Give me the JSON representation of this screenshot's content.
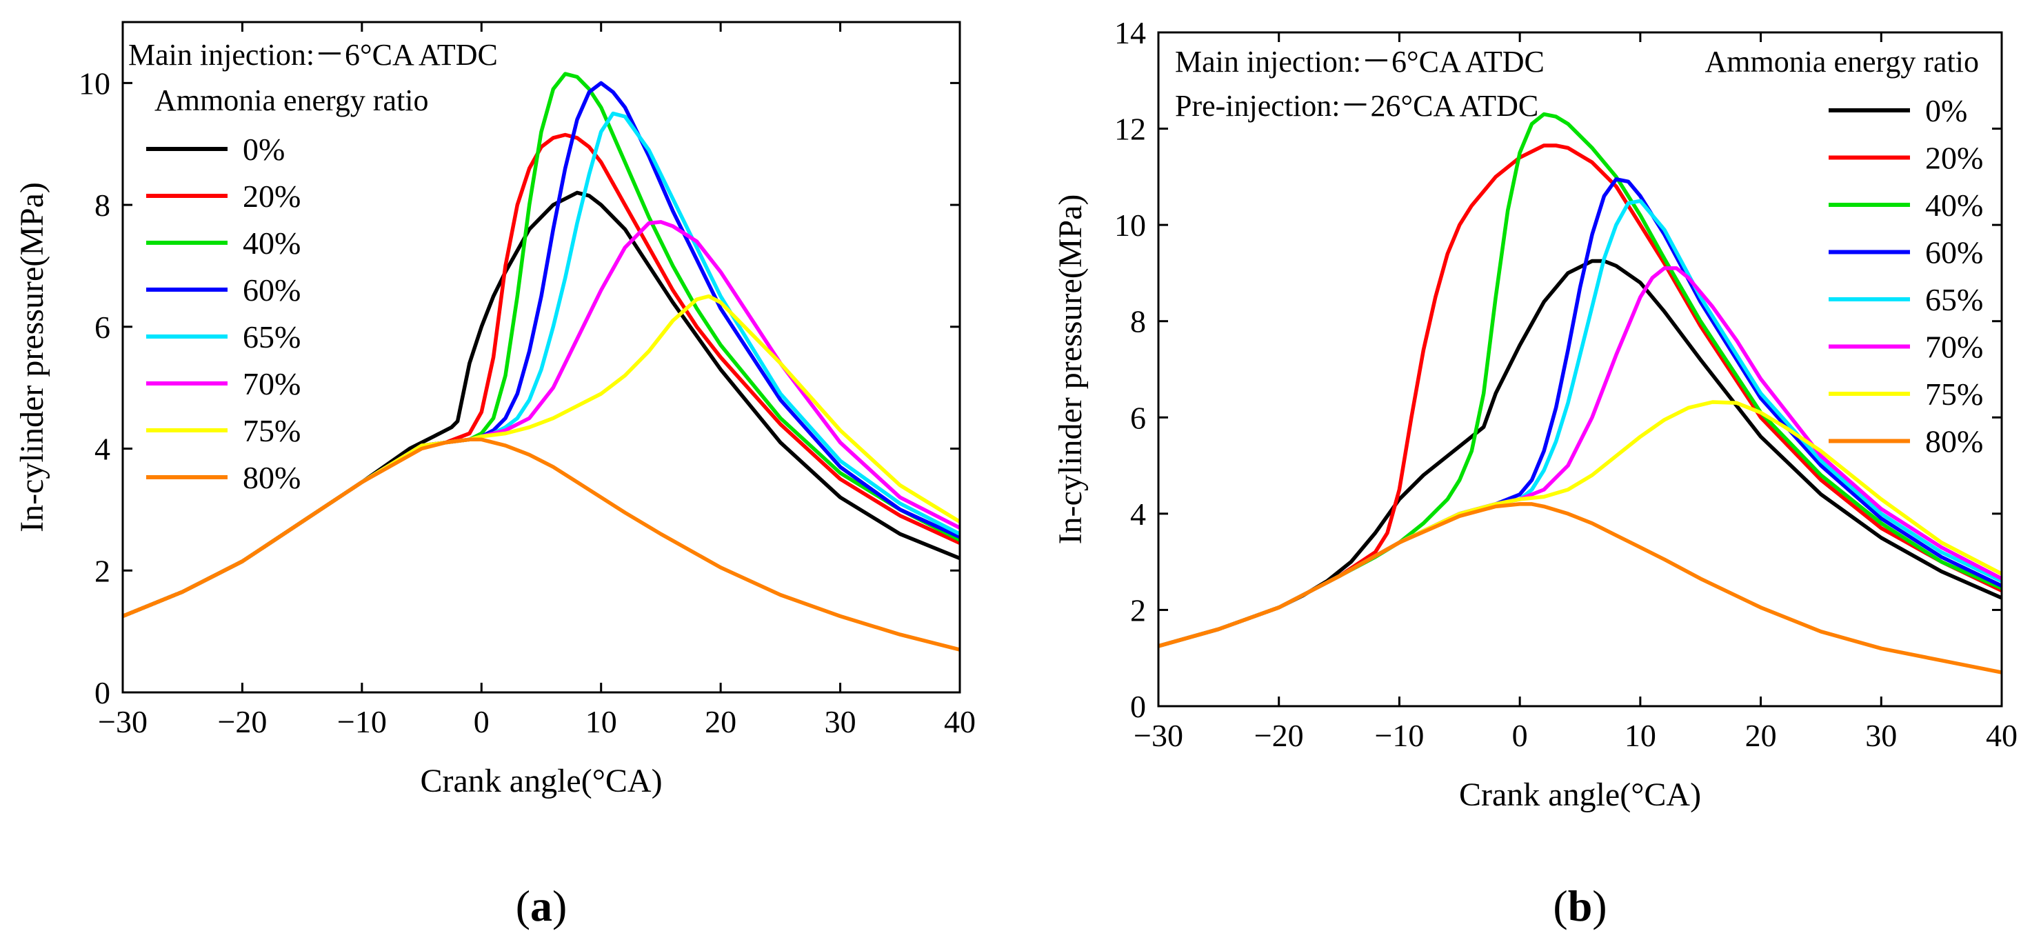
{
  "chart_data": [
    {
      "type": "line",
      "panel_label": "(a)",
      "xlabel": "Crank angle(°CA)",
      "ylabel": "In-cylinder pressure(MPa)",
      "xlim": [
        -30,
        40
      ],
      "ylim": [
        0,
        11
      ],
      "xticks": [
        -30,
        -20,
        -10,
        0,
        10,
        20,
        30,
        40
      ],
      "yticks": [
        0,
        2,
        4,
        6,
        8,
        10
      ],
      "xtick_labels": [
        "−30",
        "−20",
        "−10",
        "0",
        "10",
        "20",
        "30",
        "40"
      ],
      "ytick_labels": [
        "0",
        "2",
        "4",
        "6",
        "8",
        "10"
      ],
      "annotations": [
        "Main injection:－6°CA ATDC"
      ],
      "legend_title": "Ammonia energy ratio",
      "legend_position": "top-left",
      "series": [
        {
          "name": "0%",
          "color": "#000000",
          "x": [
            -30,
            -25,
            -20,
            -15,
            -10,
            -6,
            -4,
            -2.5,
            -2,
            -1,
            0,
            1,
            2,
            4,
            6,
            8,
            9,
            10,
            12,
            14,
            16,
            20,
            25,
            30,
            35,
            40
          ],
          "y": [
            1.25,
            1.65,
            2.15,
            2.8,
            3.45,
            4.0,
            4.2,
            4.35,
            4.45,
            5.4,
            6.0,
            6.5,
            6.9,
            7.6,
            8.0,
            8.2,
            8.15,
            8.0,
            7.6,
            7.0,
            6.4,
            5.3,
            4.1,
            3.2,
            2.6,
            2.2
          ]
        },
        {
          "name": "20%",
          "color": "#ff0000",
          "x": [
            -30,
            -25,
            -20,
            -15,
            -10,
            -5,
            -3,
            -1,
            0,
            1,
            2,
            3,
            4,
            5,
            6,
            7,
            8,
            9,
            10,
            12,
            14,
            16,
            18,
            20,
            25,
            30,
            35,
            40
          ],
          "y": [
            1.25,
            1.65,
            2.15,
            2.8,
            3.45,
            4.05,
            4.1,
            4.25,
            4.6,
            5.5,
            7.0,
            8.0,
            8.6,
            8.95,
            9.1,
            9.15,
            9.1,
            8.95,
            8.7,
            8.0,
            7.3,
            6.6,
            6.0,
            5.5,
            4.4,
            3.5,
            2.9,
            2.45
          ]
        },
        {
          "name": "40%",
          "color": "#00e000",
          "x": [
            -30,
            -25,
            -20,
            -15,
            -10,
            -5,
            -3,
            -1,
            0,
            1,
            2,
            3,
            4,
            5,
            6,
            7,
            8,
            9,
            10,
            12,
            14,
            16,
            18,
            20,
            25,
            30,
            35,
            40
          ],
          "y": [
            1.25,
            1.65,
            2.15,
            2.8,
            3.45,
            4.05,
            4.1,
            4.15,
            4.25,
            4.5,
            5.2,
            6.5,
            8.0,
            9.2,
            9.9,
            10.15,
            10.1,
            9.9,
            9.6,
            8.7,
            7.8,
            7.0,
            6.3,
            5.7,
            4.5,
            3.6,
            3.0,
            2.5
          ]
        },
        {
          "name": "60%",
          "color": "#0000ff",
          "x": [
            -30,
            -25,
            -20,
            -15,
            -10,
            -5,
            -3,
            -1,
            0,
            1,
            2,
            3,
            4,
            5,
            6,
            7,
            8,
            9,
            10,
            11,
            12,
            14,
            16,
            18,
            20,
            25,
            30,
            35,
            40
          ],
          "y": [
            1.25,
            1.65,
            2.15,
            2.8,
            3.45,
            4.05,
            4.1,
            4.15,
            4.2,
            4.3,
            4.5,
            4.9,
            5.6,
            6.5,
            7.6,
            8.6,
            9.4,
            9.85,
            10.0,
            9.85,
            9.6,
            8.8,
            7.9,
            7.1,
            6.3,
            4.8,
            3.7,
            3.0,
            2.55
          ]
        },
        {
          "name": "65%",
          "color": "#00e5ff",
          "x": [
            -30,
            -25,
            -20,
            -15,
            -10,
            -5,
            -3,
            -1,
            0,
            1,
            2,
            3,
            4,
            5,
            6,
            7,
            8,
            9,
            10,
            11,
            12,
            14,
            16,
            18,
            20,
            25,
            30,
            35,
            40
          ],
          "y": [
            1.25,
            1.65,
            2.15,
            2.8,
            3.45,
            4.05,
            4.1,
            4.15,
            4.2,
            4.25,
            4.35,
            4.5,
            4.8,
            5.3,
            6.0,
            6.8,
            7.7,
            8.5,
            9.2,
            9.5,
            9.45,
            8.9,
            8.1,
            7.3,
            6.5,
            4.9,
            3.8,
            3.1,
            2.6
          ]
        },
        {
          "name": "70%",
          "color": "#ff00ff",
          "x": [
            -30,
            -25,
            -20,
            -15,
            -10,
            -5,
            -3,
            -1,
            0,
            2,
            4,
            6,
            8,
            10,
            12,
            14,
            15,
            16,
            18,
            20,
            22,
            25,
            30,
            35,
            40
          ],
          "y": [
            1.25,
            1.65,
            2.15,
            2.8,
            3.45,
            4.05,
            4.1,
            4.15,
            4.2,
            4.3,
            4.5,
            5.0,
            5.8,
            6.6,
            7.3,
            7.7,
            7.72,
            7.65,
            7.4,
            6.9,
            6.3,
            5.4,
            4.1,
            3.2,
            2.7
          ]
        },
        {
          "name": "75%",
          "color": "#ffff00",
          "x": [
            -30,
            -25,
            -20,
            -15,
            -10,
            -5,
            -3,
            -1,
            0,
            2,
            4,
            6,
            8,
            10,
            12,
            14,
            16,
            18,
            19,
            20,
            22,
            25,
            30,
            35,
            40
          ],
          "y": [
            1.25,
            1.65,
            2.15,
            2.8,
            3.45,
            4.05,
            4.1,
            4.15,
            4.2,
            4.25,
            4.35,
            4.5,
            4.7,
            4.9,
            5.2,
            5.6,
            6.1,
            6.45,
            6.5,
            6.4,
            6.0,
            5.4,
            4.3,
            3.4,
            2.8
          ]
        },
        {
          "name": "80%",
          "color": "#ff8000",
          "x": [
            -30,
            -25,
            -20,
            -15,
            -10,
            -5,
            -3,
            -1,
            0,
            2,
            4,
            6,
            8,
            10,
            12,
            15,
            20,
            25,
            30,
            35,
            40
          ],
          "y": [
            1.25,
            1.65,
            2.15,
            2.8,
            3.45,
            4.0,
            4.1,
            4.15,
            4.15,
            4.05,
            3.9,
            3.7,
            3.45,
            3.2,
            2.95,
            2.6,
            2.05,
            1.6,
            1.25,
            0.95,
            0.7
          ]
        }
      ]
    },
    {
      "type": "line",
      "panel_label": "(b)",
      "xlabel": "Crank angle(°CA)",
      "ylabel": "In-cylinder pressure(MPa)",
      "xlim": [
        -30,
        40
      ],
      "ylim": [
        0,
        14
      ],
      "xticks": [
        -30,
        -20,
        -10,
        0,
        10,
        20,
        30,
        40
      ],
      "yticks": [
        0,
        2,
        4,
        6,
        8,
        10,
        12,
        14
      ],
      "xtick_labels": [
        "−30",
        "−20",
        "−10",
        "0",
        "10",
        "20",
        "30",
        "40"
      ],
      "ytick_labels": [
        "0",
        "2",
        "4",
        "6",
        "8",
        "10",
        "12",
        "14"
      ],
      "annotations": [
        "Main injection:－6°CA ATDC",
        "Pre-injection:－26°CA ATDC"
      ],
      "legend_title": "Ammonia energy ratio",
      "legend_position": "top-right",
      "series": [
        {
          "name": "0%",
          "color": "#000000",
          "x": [
            -30,
            -25,
            -20,
            -18,
            -16,
            -14,
            -12,
            -10,
            -8,
            -6,
            -4,
            -3,
            -2,
            0,
            2,
            4,
            6,
            7,
            8,
            10,
            12,
            15,
            20,
            25,
            30,
            35,
            40
          ],
          "y": [
            1.25,
            1.6,
            2.05,
            2.3,
            2.6,
            3.0,
            3.6,
            4.3,
            4.8,
            5.2,
            5.6,
            5.8,
            6.5,
            7.5,
            8.4,
            9.0,
            9.25,
            9.25,
            9.15,
            8.8,
            8.2,
            7.2,
            5.6,
            4.4,
            3.5,
            2.8,
            2.25
          ]
        },
        {
          "name": "20%",
          "color": "#ff0000",
          "x": [
            -30,
            -25,
            -20,
            -15,
            -12,
            -11,
            -10,
            -9,
            -8,
            -7,
            -6,
            -5,
            -4,
            -2,
            0,
            2,
            3,
            4,
            6,
            8,
            10,
            12,
            15,
            20,
            25,
            30,
            35,
            40
          ],
          "y": [
            1.25,
            1.6,
            2.05,
            2.7,
            3.2,
            3.6,
            4.5,
            6.0,
            7.4,
            8.5,
            9.4,
            10.0,
            10.4,
            11.0,
            11.4,
            11.65,
            11.65,
            11.6,
            11.3,
            10.8,
            10.0,
            9.2,
            7.9,
            6.0,
            4.7,
            3.7,
            3.0,
            2.4
          ]
        },
        {
          "name": "40%",
          "color": "#00e000",
          "x": [
            -30,
            -25,
            -20,
            -15,
            -12,
            -10,
            -8,
            -6,
            -5,
            -4,
            -3,
            -2,
            -1,
            0,
            1,
            2,
            3,
            4,
            6,
            8,
            10,
            12,
            15,
            20,
            25,
            30,
            35,
            40
          ],
          "y": [
            1.25,
            1.6,
            2.05,
            2.7,
            3.1,
            3.4,
            3.8,
            4.3,
            4.7,
            5.3,
            6.5,
            8.5,
            10.3,
            11.5,
            12.1,
            12.3,
            12.25,
            12.1,
            11.6,
            11.0,
            10.2,
            9.3,
            8.0,
            6.1,
            4.8,
            3.8,
            3.0,
            2.45
          ]
        },
        {
          "name": "60%",
          "color": "#0000ff",
          "x": [
            -30,
            -25,
            -20,
            -15,
            -10,
            -5,
            -2,
            0,
            1,
            2,
            3,
            4,
            5,
            6,
            7,
            8,
            9,
            10,
            12,
            15,
            20,
            25,
            30,
            35,
            40
          ],
          "y": [
            1.25,
            1.6,
            2.05,
            2.7,
            3.4,
            4.0,
            4.2,
            4.4,
            4.7,
            5.3,
            6.2,
            7.4,
            8.7,
            9.8,
            10.6,
            10.95,
            10.9,
            10.6,
            9.8,
            8.4,
            6.4,
            5.0,
            3.9,
            3.1,
            2.5
          ]
        },
        {
          "name": "65%",
          "color": "#00e5ff",
          "x": [
            -30,
            -25,
            -20,
            -15,
            -10,
            -5,
            -2,
            0,
            1,
            2,
            3,
            4,
            5,
            6,
            7,
            8,
            9,
            10,
            12,
            15,
            20,
            25,
            30,
            35,
            40
          ],
          "y": [
            1.25,
            1.6,
            2.05,
            2.7,
            3.4,
            4.0,
            4.2,
            4.3,
            4.5,
            4.9,
            5.5,
            6.3,
            7.3,
            8.3,
            9.3,
            10.0,
            10.45,
            10.5,
            9.9,
            8.5,
            6.5,
            5.1,
            4.0,
            3.2,
            2.6
          ]
        },
        {
          "name": "70%",
          "color": "#ff00ff",
          "x": [
            -30,
            -25,
            -20,
            -15,
            -10,
            -5,
            -2,
            0,
            2,
            4,
            6,
            8,
            10,
            11,
            12,
            13,
            14,
            16,
            18,
            20,
            25,
            30,
            35,
            40
          ],
          "y": [
            1.25,
            1.6,
            2.05,
            2.7,
            3.4,
            4.0,
            4.2,
            4.3,
            4.5,
            5.0,
            6.0,
            7.3,
            8.5,
            8.9,
            9.1,
            9.1,
            8.9,
            8.3,
            7.6,
            6.8,
            5.2,
            4.1,
            3.3,
            2.65
          ]
        },
        {
          "name": "75%",
          "color": "#ffff00",
          "x": [
            -30,
            -25,
            -20,
            -15,
            -10,
            -5,
            -2,
            0,
            2,
            4,
            6,
            8,
            10,
            12,
            14,
            16,
            18,
            20,
            22,
            25,
            30,
            35,
            40
          ],
          "y": [
            1.25,
            1.6,
            2.05,
            2.7,
            3.4,
            4.0,
            4.2,
            4.3,
            4.35,
            4.5,
            4.8,
            5.2,
            5.6,
            5.95,
            6.2,
            6.32,
            6.3,
            6.1,
            5.8,
            5.3,
            4.3,
            3.4,
            2.75
          ]
        },
        {
          "name": "80%",
          "color": "#ff8000",
          "x": [
            -30,
            -25,
            -20,
            -15,
            -10,
            -5,
            -2,
            0,
            1,
            2,
            4,
            6,
            8,
            10,
            12,
            15,
            20,
            25,
            30,
            35,
            40
          ],
          "y": [
            1.25,
            1.6,
            2.05,
            2.7,
            3.4,
            3.95,
            4.15,
            4.2,
            4.2,
            4.15,
            4.0,
            3.8,
            3.55,
            3.3,
            3.05,
            2.65,
            2.05,
            1.55,
            1.2,
            0.95,
            0.7
          ]
        }
      ]
    }
  ]
}
